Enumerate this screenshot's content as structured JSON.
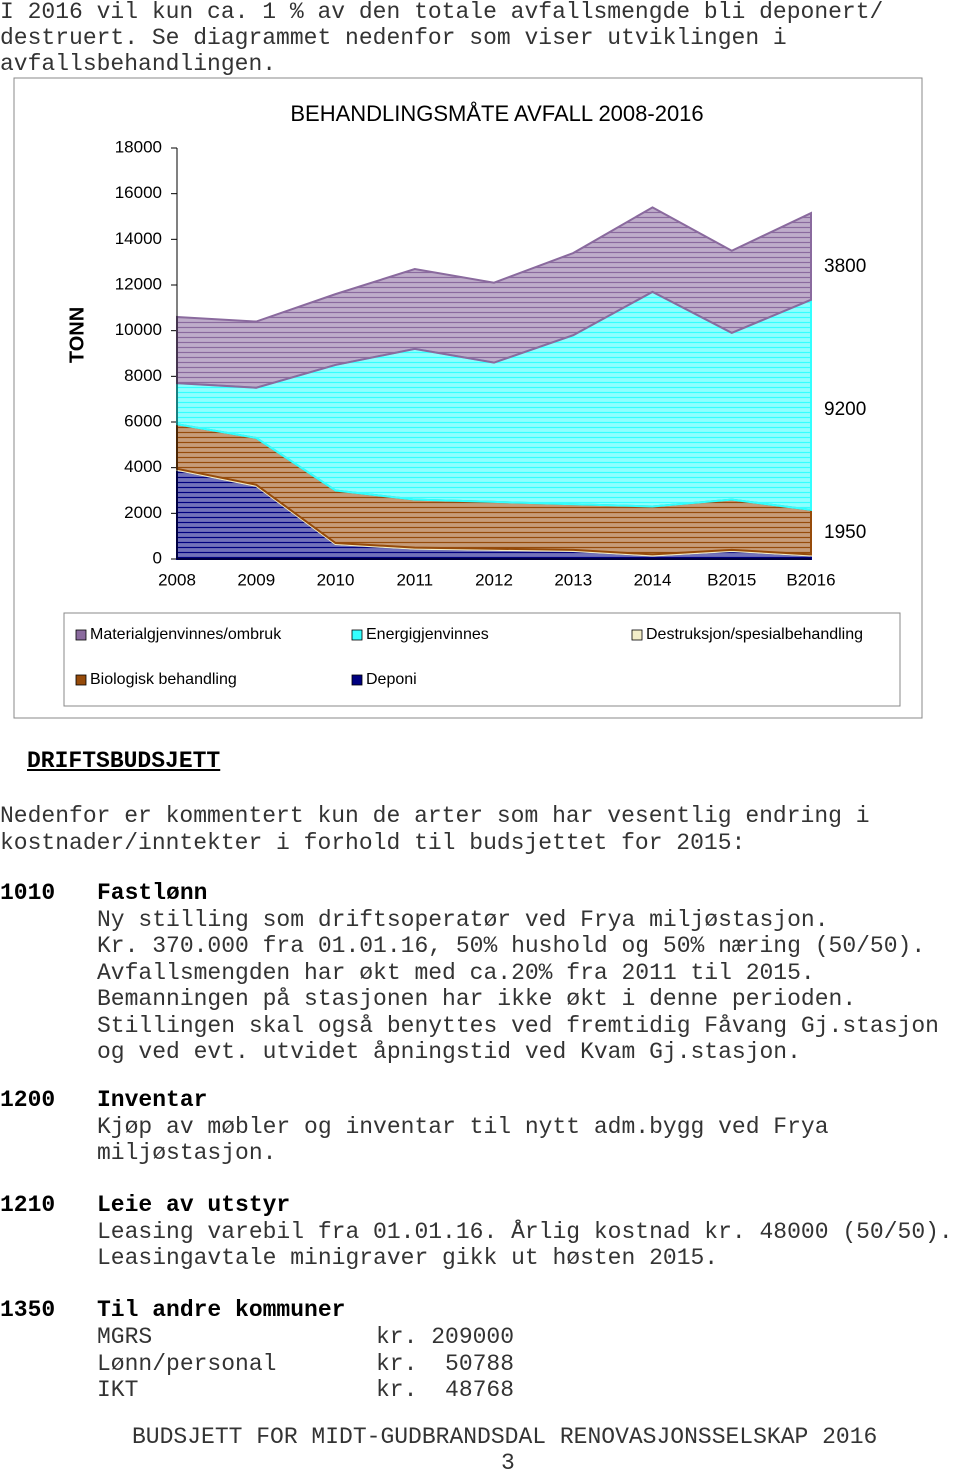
{
  "intro": {
    "lines": [
      "I 2016 vil kun ca. 1 % av den totale avfallsmengde bli deponert/",
      "destruert. Se diagrammet nedenfor som viser utviklingen i",
      "avfallsbehandlingen."
    ]
  },
  "chart_data": {
    "type": "stacked-area",
    "title": "BEHANDLINGSMÅTE  AVFALL 2008-2016",
    "y_label": "TONN",
    "categories": [
      "2008",
      "2009",
      "2010",
      "2011",
      "2012",
      "2013",
      "2014",
      "B2015",
      "B2016"
    ],
    "series": [
      {
        "name": "Deponi",
        "color": "#000080",
        "values": [
          3900,
          3200,
          650,
          450,
          400,
          350,
          150,
          350,
          150
        ]
      },
      {
        "name": "Destruksjon/spesialbehandling",
        "color": "#f2edc8",
        "values": [
          50,
          50,
          50,
          50,
          50,
          50,
          50,
          50,
          50
        ]
      },
      {
        "name": "Biologisk behandling",
        "color": "#964B0A",
        "values": [
          1950,
          2050,
          2300,
          2100,
          2050,
          2000,
          2100,
          2200,
          1950
        ]
      },
      {
        "name": "Energigjenvinnes",
        "color": "#33ffff",
        "values": [
          1800,
          2200,
          5500,
          6600,
          6100,
          7400,
          9400,
          7300,
          9200
        ]
      },
      {
        "name": "Materialgjenvinnes/ombruk",
        "color": "#8a6a9e",
        "values": [
          2900,
          2900,
          3100,
          3500,
          3500,
          3600,
          3700,
          3600,
          3800
        ]
      }
    ],
    "ylim": [
      0,
      18000
    ],
    "yticks": [
      0,
      2000,
      4000,
      6000,
      8000,
      10000,
      12000,
      14000,
      16000,
      18000
    ],
    "grid": false
  },
  "section": {
    "heading": "DRIFTSBUDSJETT",
    "lines": [
      "Nedenfor er kommentert kun de arter som har vesentlig endring i",
      "kostnader/inntekter i forhold til budsjettet for 2015:"
    ]
  },
  "items": [
    {
      "code": "1010",
      "title": "Fastlønn",
      "lines": [
        "Ny stilling som driftsoperatør ved Frya miljøstasjon.",
        "Kr. 370.000 fra 01.01.16, 50% hushold og 50% næring (50/50).",
        "Avfallsmengden har økt med ca.20% fra 2011 til 2015.",
        "Bemanningen på stasjonen har ikke økt i denne perioden.",
        "Stillingen skal også benyttes ved fremtidig Fåvang Gj.stasjon",
        "og ved evt. utvidet åpningstid ved Kvam Gj.stasjon."
      ]
    },
    {
      "code": "1200",
      "title": "Inventar",
      "lines": [
        "Kjøp av møbler og inventar til nytt adm.bygg ved Frya",
        "miljøstasjon."
      ]
    },
    {
      "code": "1210",
      "title": "Leie av utstyr",
      "lines": [
        "Leasing varebil fra 01.01.16. Årlig kostnad kr. 48000 (50/50).",
        "Leasingavtale minigraver gikk ut høsten 2015."
      ]
    },
    {
      "code": "1350",
      "title": "Til andre kommuner",
      "rows": [
        [
          "MGRS",
          "kr. 209000"
        ],
        [
          "Lønn/personal",
          "kr.  50788"
        ],
        [
          "IKT",
          "kr.  48768"
        ]
      ]
    }
  ],
  "footer": {
    "title": "BUDSJETT FOR MIDT-GUDBRANDSDAL RENOVASJONSSELSKAP 2016",
    "page": "3"
  }
}
